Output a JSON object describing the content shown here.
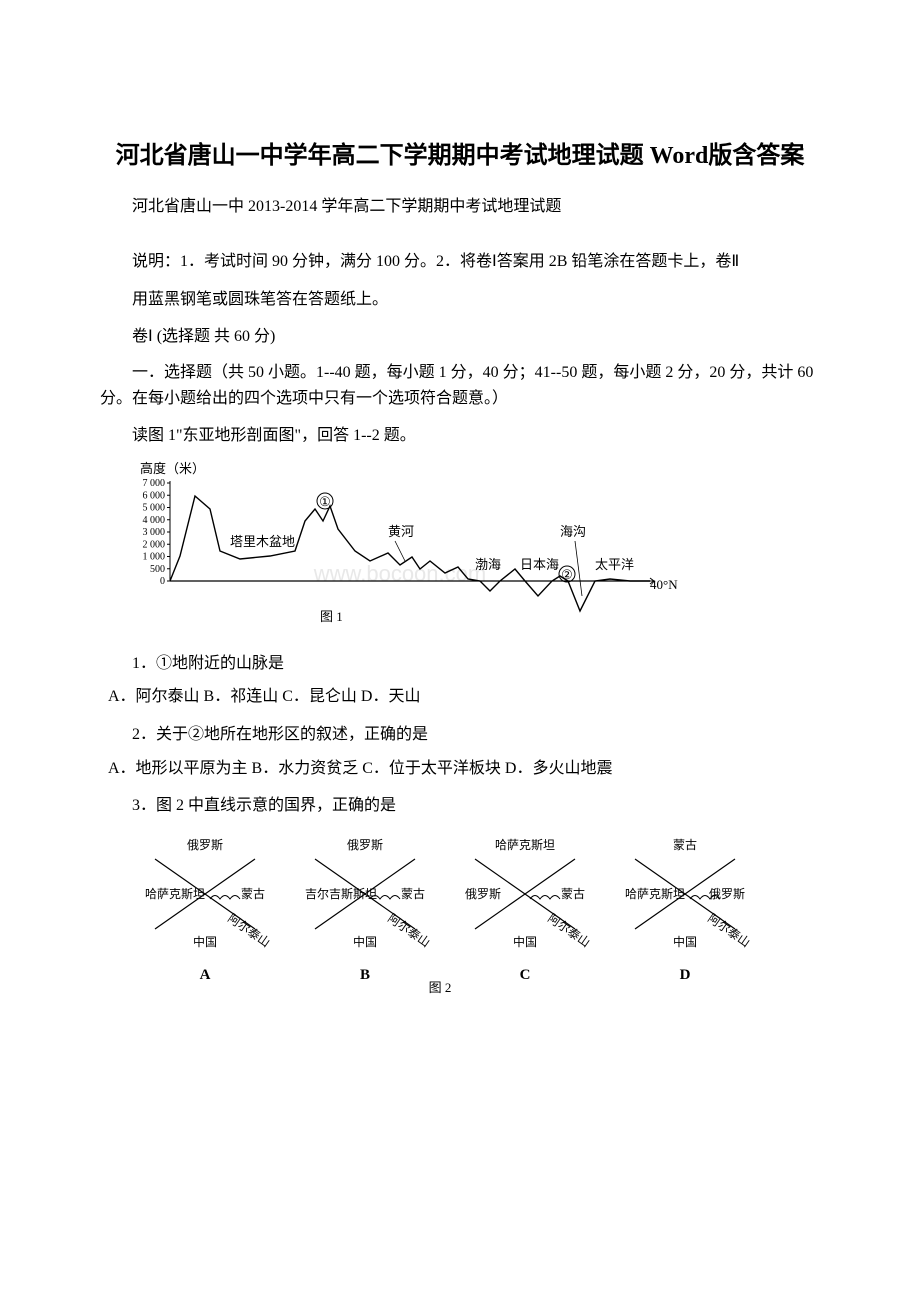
{
  "title": "河北省唐山一中学年高二下学期期中考试地理试题 Word版含答案",
  "subtitle": "河北省唐山一中 2013-2014 学年高二下学期期中考试地理试题",
  "instructions_line1": "说明：1．考试时间 90 分钟，满分 100 分。2．将卷Ⅰ答案用 2B 铅笔涂在答题卡上，卷Ⅱ",
  "instructions_line2": "用蓝黑钢笔或圆珠笔答在答题纸上。",
  "section_header": "卷Ⅰ (选择题 共 60 分)",
  "section_intro": "一．选择题（共 50 小题。1--40 题，每小题 1 分，40 分；41--50 题，每小题 2 分，20 分，共计 60 分。在每小题给出的四个选项中只有一个选项符合题意。）",
  "fig1_intro": "读图 1\"东亚地形剖面图\"，回答 1--2 题。",
  "chart1": {
    "type": "line-profile",
    "title_label": "高度（米）",
    "y_ticks": [
      "7 000",
      "6 000",
      "5 000",
      "4 000",
      "3 000",
      "2 000",
      "1 000",
      "500",
      "0"
    ],
    "labels": {
      "basin": "塔里木盆地",
      "marker1": "①",
      "yellow_river": "黄河",
      "bohai": "渤海",
      "japan_sea": "日本海",
      "marker2": "②",
      "trench": "海沟",
      "pacific": "太平洋",
      "lat": "40°N"
    },
    "caption": "图 1",
    "stroke_color": "#000000",
    "bg_color": "#ffffff",
    "axis_font_size": 11,
    "label_font_size": 13,
    "watermark": "www.bocoon.com",
    "watermark_color": "#e5e5e5"
  },
  "q1": {
    "text": "1．①地附近的山脉是",
    "options": " A．阿尔泰山 B．祁连山 C．昆仑山 D．天山"
  },
  "q2": {
    "text": "2．关于②地所在地形区的叙述，正确的是",
    "options": " A．地形以平原为主 B．水力资贫乏 C．位于太平洋板块 D．多火山地震"
  },
  "q3": {
    "text": "3．图 2 中直线示意的国界，正确的是"
  },
  "fig2": {
    "caption": "图 2",
    "panels": [
      {
        "letter": "A",
        "nw": "俄罗斯",
        "ne": "",
        "w": "哈萨克斯坦",
        "e": "蒙古",
        "s": "中国",
        "sw_diag": "阿尔泰山"
      },
      {
        "letter": "B",
        "nw": "俄罗斯",
        "ne": "",
        "w": "吉尔吉斯斯坦",
        "e": "蒙古",
        "s": "中国",
        "sw_diag": "阿尔泰山"
      },
      {
        "letter": "C",
        "nw": "哈萨克斯坦",
        "ne": "",
        "w": "俄罗斯",
        "e": "蒙古",
        "s": "中国",
        "sw_diag": "阿尔泰山"
      },
      {
        "letter": "D",
        "nw": "蒙古",
        "ne": "",
        "w": "哈萨克斯坦",
        "e": "俄罗斯",
        "s": "中国",
        "sw_diag": "阿尔泰山"
      }
    ],
    "stroke_color": "#000000"
  }
}
